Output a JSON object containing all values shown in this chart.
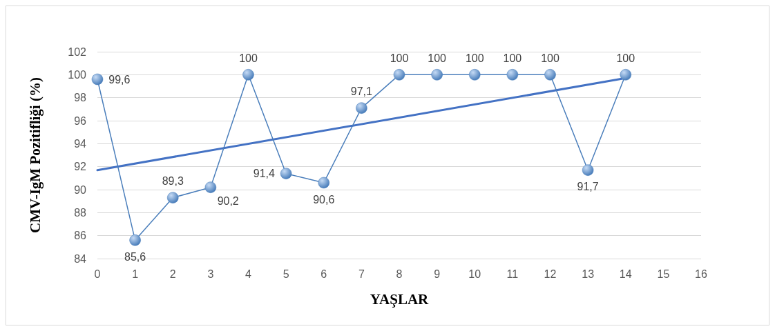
{
  "chart_data": {
    "type": "line",
    "xlabel": "YAŞLAR",
    "ylabel": "CMV-IgM Pozitifliği (%)",
    "x": [
      0,
      1,
      2,
      3,
      4,
      5,
      6,
      7,
      8,
      9,
      10,
      11,
      12,
      13,
      14
    ],
    "series": [
      {
        "color": "#4a7ebb",
        "values": [
          99.6,
          85.6,
          89.3,
          90.2,
          100,
          91.4,
          90.6,
          97.1,
          100,
          100,
          100,
          100,
          100,
          91.7,
          100
        ],
        "value_labels": [
          "99,6",
          "85,6",
          "89,3",
          "90,2",
          "100",
          "91,4",
          "90,6",
          "97,1",
          "100",
          "100",
          "100",
          "100",
          "100",
          "91,7",
          "100"
        ],
        "marker": "circle"
      },
      {
        "type": "line",
        "color": "#4472c4",
        "x": [
          0,
          14
        ],
        "values": [
          91.7,
          99.7
        ],
        "marker": "none"
      }
    ],
    "xlim": [
      0,
      16
    ],
    "xticks": [
      0,
      1,
      2,
      3,
      4,
      5,
      6,
      7,
      8,
      9,
      10,
      11,
      12,
      13,
      14,
      15,
      16
    ],
    "ylim": [
      84,
      102
    ],
    "yticks": [
      84,
      86,
      88,
      90,
      92,
      94,
      96,
      98,
      100,
      102
    ],
    "grid": "y"
  }
}
